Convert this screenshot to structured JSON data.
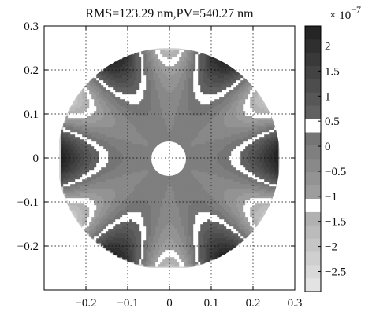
{
  "chart_data": {
    "type": "heatmap",
    "title": "RMS=123.29 nm,PV=540.27 nm",
    "xlabel": "",
    "ylabel": "",
    "xlim": [
      -0.3,
      0.3
    ],
    "ylim": [
      -0.3,
      0.3
    ],
    "x_ticks": [
      "−0.2",
      "−0.1",
      "0",
      "0.1",
      "0.2",
      "0.3"
    ],
    "x_tick_values": [
      -0.2,
      -0.1,
      0,
      0.1,
      0.2,
      0.3
    ],
    "y_ticks": [
      "0.3",
      "0.2",
      "0.1",
      "0",
      "−0.1",
      "−0.2"
    ],
    "y_tick_values": [
      0.3,
      0.2,
      0.1,
      0,
      -0.1,
      -0.2
    ],
    "grid": true,
    "aperture_outer_radius": 0.26,
    "aperture_inner_radius": 0.04,
    "pattern_symmetry": 6,
    "colorbar": {
      "multiplier_base": "× 10",
      "multiplier_exponent": "−7",
      "range": [
        -2.9,
        2.4
      ],
      "levels": 20,
      "tick_labels": [
        "2",
        "1.5",
        "1",
        "0.5",
        "0",
        "−0.5",
        "−1",
        "−1.5",
        "−2",
        "−2.5"
      ],
      "tick_values": [
        2.0,
        1.5,
        1.0,
        0.5,
        0.0,
        -0.5,
        -1.0,
        -1.5,
        -2.0,
        -2.5
      ],
      "colormap": "gray (dark = high, white band near 0.5 and −1.1)"
    }
  }
}
